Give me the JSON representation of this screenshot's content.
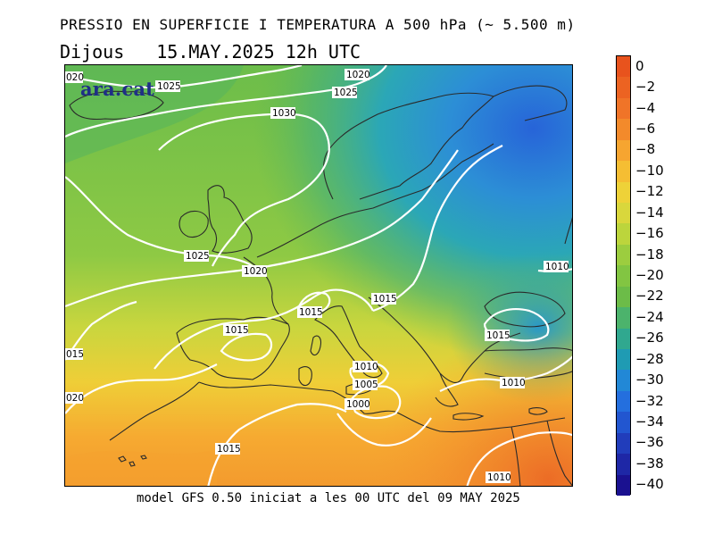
{
  "header": {
    "title": "PRESSIO EN SUPERFICIE I TEMPERATURA A 500 hPa (~ 5.500 m)",
    "day": "Dijous",
    "datetime": "15.MAY.2025 12h UTC"
  },
  "map": {
    "logo": "ara.cat",
    "isobar_labels": {
      "l1020_nw": "020",
      "l1025_top": "1025",
      "l1020_top": "1020",
      "l1025_n": "1025",
      "l1030": "1030",
      "l1025_w": "1025",
      "l1020_c": "1020",
      "l1015_fr": "1015",
      "l1015_alps": "1015",
      "l1015_sp": "1015",
      "l1015_w": "015",
      "l1020_sw": "020",
      "l1010_e": "1010",
      "l1015_e": "1015",
      "l1010_it": "1010",
      "l1005": "1005",
      "l1000": "1000",
      "l1010_gr": "1010",
      "l1015_s": "1015",
      "l1010_se": "1010"
    }
  },
  "footer": "model GFS 0.50 iniciat a les 00 UTC del 09 MAY 2025",
  "colorbar": {
    "labels": [
      "0",
      "−2",
      "−4",
      "−6",
      "−8",
      "−10",
      "−12",
      "−14",
      "−16",
      "−18",
      "−20",
      "−22",
      "−24",
      "−26",
      "−28",
      "−30",
      "−32",
      "−34",
      "−36",
      "−38",
      "−40"
    ],
    "colors": [
      "#e8531d",
      "#ec6322",
      "#f07428",
      "#f38a2b",
      "#f6a530",
      "#f5be33",
      "#eed238",
      "#d9d73c",
      "#bcd53c",
      "#9ccd3f",
      "#82c542",
      "#6cbc48",
      "#4cb36c",
      "#30a88f",
      "#1f9bb3",
      "#2288d6",
      "#246fde",
      "#2256d0",
      "#213dbb",
      "#1e27a6",
      "#1a1190"
    ]
  }
}
